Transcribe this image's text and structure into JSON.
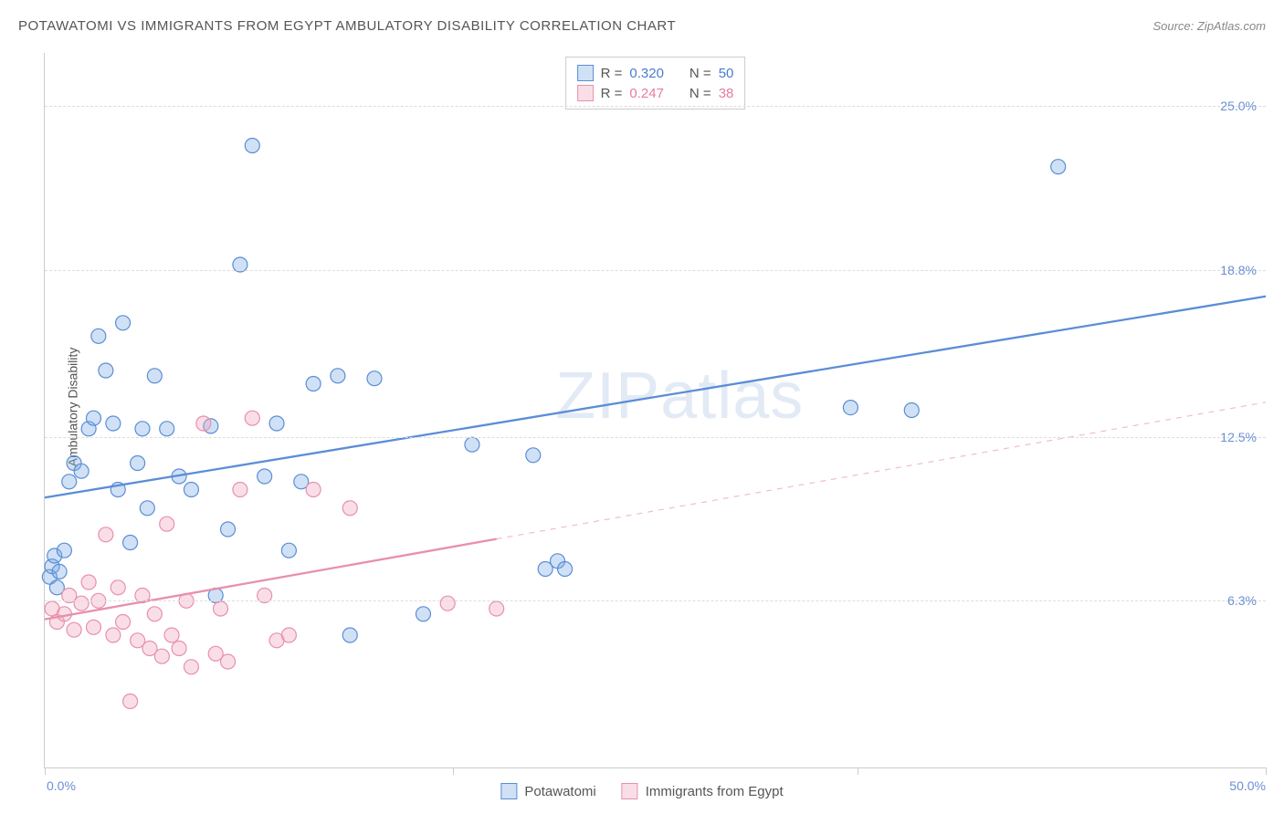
{
  "header": {
    "title": "POTAWATOMI VS IMMIGRANTS FROM EGYPT AMBULATORY DISABILITY CORRELATION CHART",
    "source": "Source: ZipAtlas.com"
  },
  "watermark": {
    "prefix": "ZIP",
    "suffix": "atlas"
  },
  "chart": {
    "type": "scatter",
    "y_axis_label": "Ambulatory Disability",
    "background_color": "#ffffff",
    "grid_color": "#dddddd",
    "axis_color": "#cccccc",
    "xlim": [
      0,
      50
    ],
    "ylim": [
      0,
      27
    ],
    "y_gridlines": [
      6.3,
      12.5,
      18.8,
      25.0
    ],
    "y_tick_labels": [
      "6.3%",
      "12.5%",
      "18.8%",
      "25.0%"
    ],
    "y_tick_color": "#6b8fd4",
    "y_tick_fontsize": 14,
    "x_ticks": [
      0,
      16.7,
      33.3,
      50
    ],
    "x_tick_labels_shown": {
      "left": "0.0%",
      "right": "50.0%"
    },
    "x_tick_color": "#6b8fd4",
    "marker_radius": 8,
    "marker_stroke_width": 1.2,
    "marker_fill_opacity": 0.3,
    "trend_line_width": 2.3,
    "series": [
      {
        "name": "Potawatomi",
        "color": "#5b8dd6",
        "fill": "rgba(120,170,225,0.35)",
        "stats": {
          "R": "0.320",
          "N": "50"
        },
        "trend": {
          "x1": 0,
          "y1": 10.2,
          "x2": 50,
          "y2": 17.8,
          "dashed_from": null
        },
        "points": [
          [
            0.2,
            7.2
          ],
          [
            0.3,
            7.6
          ],
          [
            0.4,
            8.0
          ],
          [
            0.5,
            6.8
          ],
          [
            0.6,
            7.4
          ],
          [
            0.8,
            8.2
          ],
          [
            1.0,
            10.8
          ],
          [
            1.2,
            11.5
          ],
          [
            1.5,
            11.2
          ],
          [
            1.8,
            12.8
          ],
          [
            2.0,
            13.2
          ],
          [
            2.2,
            16.3
          ],
          [
            2.5,
            15.0
          ],
          [
            2.8,
            13.0
          ],
          [
            3.0,
            10.5
          ],
          [
            3.2,
            16.8
          ],
          [
            3.5,
            8.5
          ],
          [
            3.8,
            11.5
          ],
          [
            4.0,
            12.8
          ],
          [
            4.2,
            9.8
          ],
          [
            4.5,
            14.8
          ],
          [
            5.0,
            12.8
          ],
          [
            5.5,
            11.0
          ],
          [
            6.0,
            10.5
          ],
          [
            6.8,
            12.9
          ],
          [
            7.0,
            6.5
          ],
          [
            7.5,
            9.0
          ],
          [
            8.0,
            19.0
          ],
          [
            8.5,
            23.5
          ],
          [
            9.0,
            11.0
          ],
          [
            9.5,
            13.0
          ],
          [
            10.0,
            8.2
          ],
          [
            10.5,
            10.8
          ],
          [
            11.0,
            14.5
          ],
          [
            12.0,
            14.8
          ],
          [
            12.5,
            5.0
          ],
          [
            13.5,
            14.7
          ],
          [
            15.5,
            5.8
          ],
          [
            17.5,
            12.2
          ],
          [
            20.0,
            11.8
          ],
          [
            20.5,
            7.5
          ],
          [
            21.0,
            7.8
          ],
          [
            21.3,
            7.5
          ],
          [
            33.0,
            13.6
          ],
          [
            35.5,
            13.5
          ],
          [
            41.5,
            22.7
          ]
        ]
      },
      {
        "name": "Immigrants from Egypt",
        "color": "#e890ab",
        "fill": "rgba(240,160,185,0.35)",
        "stats": {
          "R": "0.247",
          "N": "38"
        },
        "trend": {
          "x1": 0,
          "y1": 5.6,
          "x2": 50,
          "y2": 13.8,
          "dashed_from": 18.5
        },
        "points": [
          [
            0.3,
            6.0
          ],
          [
            0.5,
            5.5
          ],
          [
            0.8,
            5.8
          ],
          [
            1.0,
            6.5
          ],
          [
            1.2,
            5.2
          ],
          [
            1.5,
            6.2
          ],
          [
            1.8,
            7.0
          ],
          [
            2.0,
            5.3
          ],
          [
            2.2,
            6.3
          ],
          [
            2.5,
            8.8
          ],
          [
            2.8,
            5.0
          ],
          [
            3.0,
            6.8
          ],
          [
            3.2,
            5.5
          ],
          [
            3.5,
            2.5
          ],
          [
            3.8,
            4.8
          ],
          [
            4.0,
            6.5
          ],
          [
            4.3,
            4.5
          ],
          [
            4.5,
            5.8
          ],
          [
            4.8,
            4.2
          ],
          [
            5.0,
            9.2
          ],
          [
            5.2,
            5.0
          ],
          [
            5.5,
            4.5
          ],
          [
            5.8,
            6.3
          ],
          [
            6.0,
            3.8
          ],
          [
            6.5,
            13.0
          ],
          [
            7.0,
            4.3
          ],
          [
            7.2,
            6.0
          ],
          [
            7.5,
            4.0
          ],
          [
            8.0,
            10.5
          ],
          [
            8.5,
            13.2
          ],
          [
            9.0,
            6.5
          ],
          [
            9.5,
            4.8
          ],
          [
            10.0,
            5.0
          ],
          [
            11.0,
            10.5
          ],
          [
            12.5,
            9.8
          ],
          [
            16.5,
            6.2
          ],
          [
            18.5,
            6.0
          ]
        ]
      }
    ]
  },
  "stats_legend": {
    "label_R": "R =",
    "label_N": "N ="
  },
  "bottom_legend": {
    "items": [
      "Potawatomi",
      "Immigrants from Egypt"
    ]
  }
}
